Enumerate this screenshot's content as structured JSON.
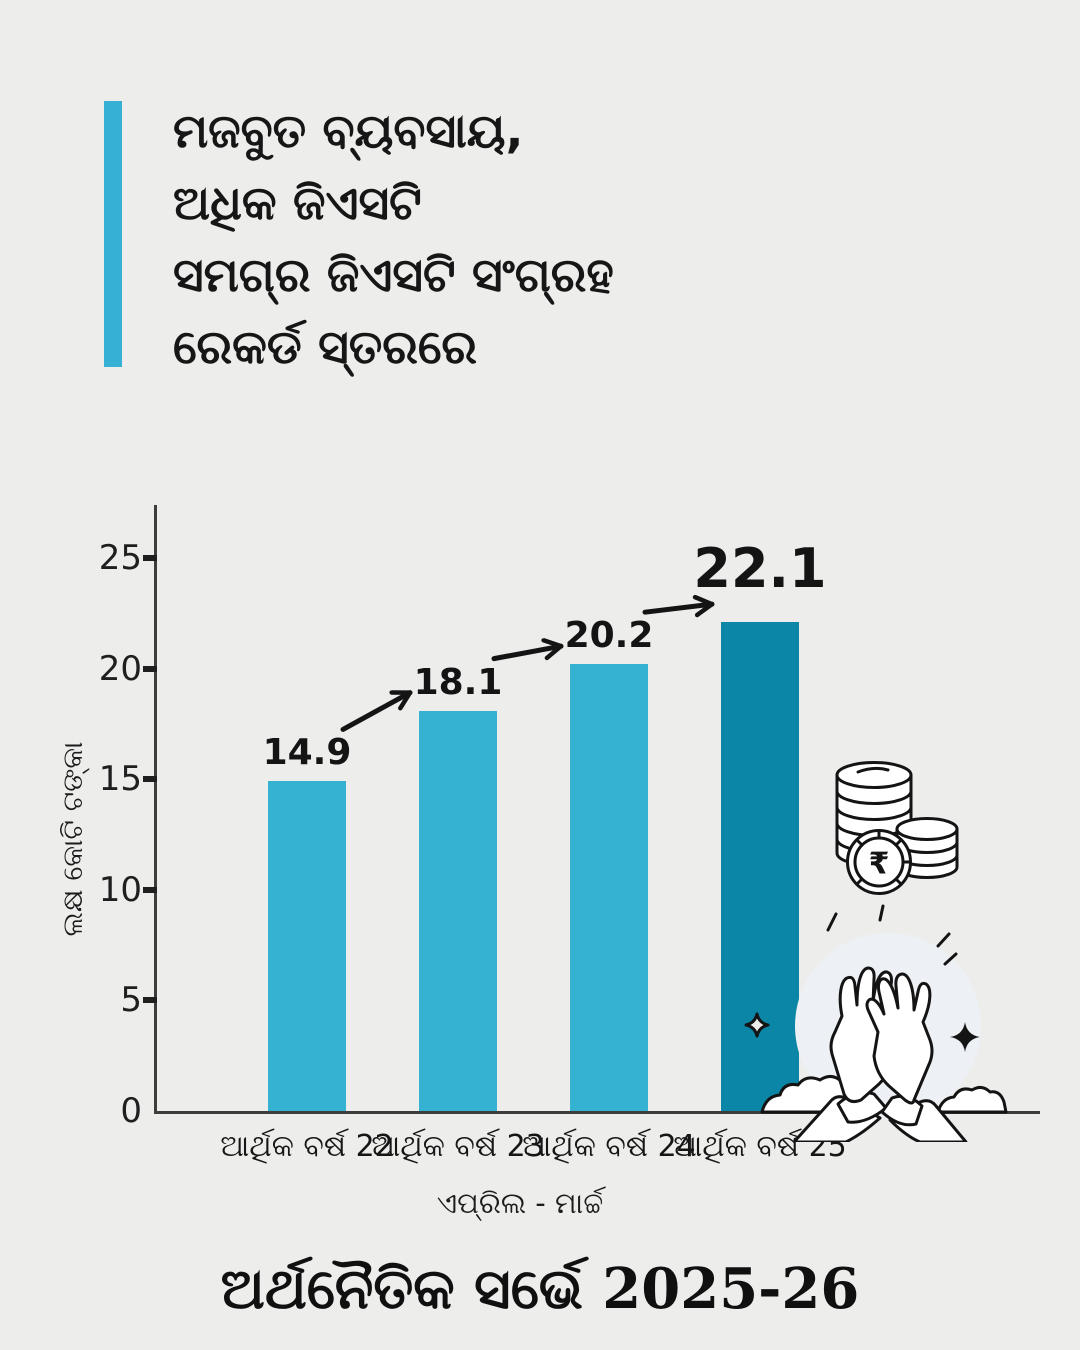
{
  "header": {
    "accent_color": "#36b0d4",
    "lines": [
      "ମଜବୁତ ବ୍ୟବସାୟ,",
      "ଅଧିକ ଜିଏସଟି",
      "ସମଗ୍ର ଜିଏସଟି ସଂଗ୍ରହ",
      "ରେକର୍ଡ ସ୍ତରରେ"
    ]
  },
  "chart_data": {
    "type": "bar",
    "categories": [
      "ଆର୍ଥିକ ବର୍ଷ 22",
      "ଆର୍ଥିକ ବର୍ଷ 23",
      "ଆର୍ଥିକ ବର୍ଷ 24",
      "ଆର୍ଥିକ ବର୍ଷ 25"
    ],
    "values": [
      14.9,
      18.1,
      20.2,
      22.1
    ],
    "value_labels": [
      "14.9",
      "18.1",
      "20.2",
      "22.1"
    ],
    "highlight_index": 3,
    "bar_color": "#35b1d2",
    "highlight_color": "#0b86a6",
    "axis_color": "#3d3d3d",
    "label_color": "#141414",
    "ylabel": "ଲକ୍ଷ କୋଟି ଟଙ୍କା",
    "xlabel": "ଏପ୍ରିଲ - ମାର୍ଚ୍ଚ",
    "yticks": [
      0,
      5,
      10,
      15,
      20,
      25
    ],
    "ylim": [
      0,
      27.5
    ],
    "grid": false,
    "legend": "none",
    "annotations": "rising arrows between consecutive bars"
  },
  "footer": {
    "title": "ଅର୍ଥନୈତିକ ସର୍ଭେ 2025-26"
  },
  "illustrations": {
    "coins": {
      "name": "coin-stack-with-rupee",
      "currency_symbol": "₹"
    },
    "hands": {
      "name": "high-five-hands"
    }
  }
}
